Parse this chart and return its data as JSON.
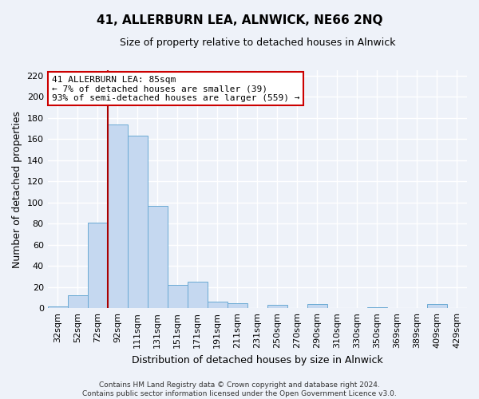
{
  "title": "41, ALLERBURN LEA, ALNWICK, NE66 2NQ",
  "subtitle": "Size of property relative to detached houses in Alnwick",
  "xlabel": "Distribution of detached houses by size in Alnwick",
  "ylabel": "Number of detached properties",
  "bar_labels": [
    "32sqm",
    "52sqm",
    "72sqm",
    "92sqm",
    "111sqm",
    "131sqm",
    "151sqm",
    "171sqm",
    "191sqm",
    "211sqm",
    "231sqm",
    "250sqm",
    "270sqm",
    "290sqm",
    "310sqm",
    "330sqm",
    "350sqm",
    "369sqm",
    "389sqm",
    "409sqm",
    "429sqm"
  ],
  "bar_values": [
    2,
    12,
    81,
    174,
    163,
    97,
    22,
    25,
    6,
    5,
    0,
    3,
    0,
    4,
    0,
    0,
    1,
    0,
    0,
    4,
    0
  ],
  "bar_color": "#c5d8f0",
  "bar_edge_color": "#6aaad4",
  "vline_color": "#aa0000",
  "vline_pos": 2.5,
  "ylim": [
    0,
    225
  ],
  "yticks": [
    0,
    20,
    40,
    60,
    80,
    100,
    120,
    140,
    160,
    180,
    200,
    220
  ],
  "annotation_title": "41 ALLERBURN LEA: 85sqm",
  "annotation_line1": "← 7% of detached houses are smaller (39)",
  "annotation_line2": "93% of semi-detached houses are larger (559) →",
  "annotation_box_facecolor": "#ffffff",
  "annotation_box_edgecolor": "#cc0000",
  "footer_line1": "Contains HM Land Registry data © Crown copyright and database right 2024.",
  "footer_line2": "Contains public sector information licensed under the Open Government Licence v3.0.",
  "bg_color": "#eef2f9",
  "grid_color": "#ffffff",
  "title_fontsize": 11,
  "subtitle_fontsize": 9,
  "ylabel_fontsize": 9,
  "xlabel_fontsize": 9,
  "tick_fontsize": 8,
  "ann_fontsize": 8,
  "footer_fontsize": 6.5
}
